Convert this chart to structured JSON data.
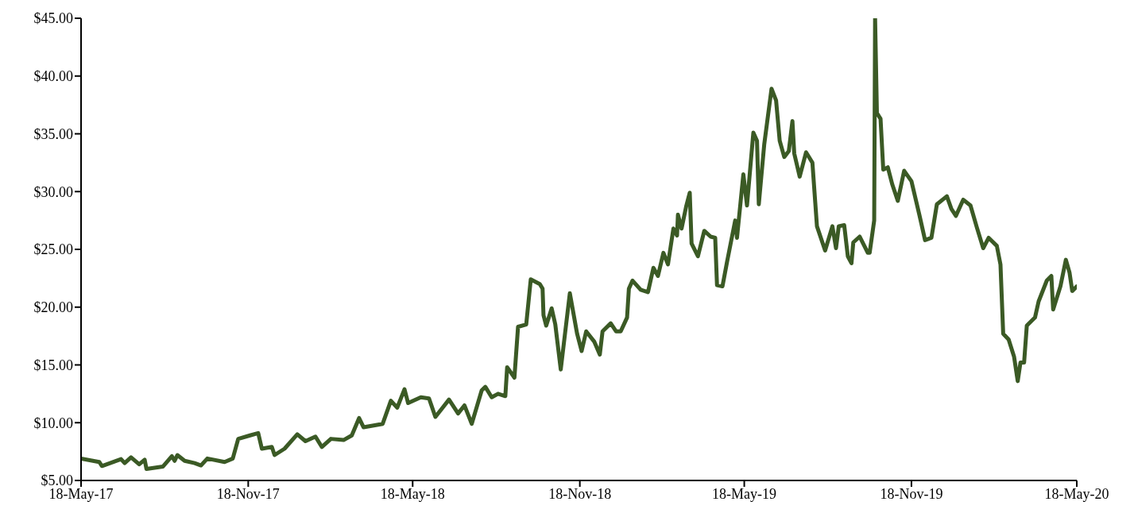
{
  "chart_data": {
    "type": "line",
    "x": [
      "2017-05-18",
      "2017-06-07",
      "2017-06-10",
      "2017-07-01",
      "2017-07-05",
      "2017-07-12",
      "2017-07-21",
      "2017-07-27",
      "2017-07-29",
      "2017-08-16",
      "2017-08-26",
      "2017-08-29",
      "2017-09-01",
      "2017-09-09",
      "2017-09-20",
      "2017-09-27",
      "2017-10-04",
      "2017-10-23",
      "2017-11-01",
      "2017-11-07",
      "2017-11-20",
      "2017-11-29",
      "2017-12-03",
      "2017-12-14",
      "2017-12-17",
      "2017-12-28",
      "2018-01-11",
      "2018-01-20",
      "2018-01-31",
      "2018-02-07",
      "2018-02-17",
      "2018-03-03",
      "2018-03-12",
      "2018-03-20",
      "2018-03-25",
      "2018-04-15",
      "2018-04-24",
      "2018-05-01",
      "2018-05-09",
      "2018-05-13",
      "2018-05-27",
      "2018-06-05",
      "2018-06-12",
      "2018-06-27",
      "2018-07-07",
      "2018-07-14",
      "2018-07-22",
      "2018-08-02",
      "2018-08-06",
      "2018-08-13",
      "2018-08-20",
      "2018-08-28",
      "2018-08-30",
      "2018-09-07",
      "2018-09-11",
      "2018-09-20",
      "2018-09-25",
      "2018-10-05",
      "2018-10-08",
      "2018-10-09",
      "2018-10-12",
      "2018-10-18",
      "2018-10-22",
      "2018-10-28",
      "2018-11-07",
      "2018-11-15",
      "2018-11-20",
      "2018-11-25",
      "2018-12-04",
      "2018-12-10",
      "2018-12-13",
      "2018-12-22",
      "2018-12-28",
      "2019-01-02",
      "2019-01-09",
      "2019-01-11",
      "2019-01-15",
      "2019-01-24",
      "2019-02-01",
      "2019-02-07",
      "2019-02-12",
      "2019-02-18",
      "2019-02-23",
      "2019-03-01",
      "2019-03-05",
      "2019-03-06",
      "2019-03-10",
      "2019-03-15",
      "2019-03-19",
      "2019-03-21",
      "2019-03-28",
      "2019-04-04",
      "2019-04-11",
      "2019-04-16",
      "2019-04-18",
      "2019-04-24",
      "2019-04-29",
      "2019-05-08",
      "2019-05-10",
      "2019-05-17",
      "2019-05-21",
      "2019-05-28",
      "2019-06-01",
      "2019-06-03",
      "2019-06-09",
      "2019-06-17",
      "2019-06-22",
      "2019-06-26",
      "2019-07-01",
      "2019-07-06",
      "2019-07-10",
      "2019-07-12",
      "2019-07-18",
      "2019-07-25",
      "2019-08-01",
      "2019-08-06",
      "2019-08-15",
      "2019-08-23",
      "2019-08-27",
      "2019-08-30",
      "2019-09-05",
      "2019-09-09",
      "2019-09-13",
      "2019-09-15",
      "2019-09-22",
      "2019-10-01",
      "2019-10-03",
      "2019-10-08",
      "2019-10-09",
      "2019-10-11",
      "2019-10-15",
      "2019-10-18",
      "2019-10-23",
      "2019-10-28",
      "2019-11-03",
      "2019-11-10",
      "2019-11-18",
      "2019-11-27",
      "2019-12-03",
      "2019-12-10",
      "2019-12-16",
      "2019-12-27",
      "2020-01-01",
      "2020-01-06",
      "2020-01-14",
      "2020-01-22",
      "2020-01-29",
      "2020-02-05",
      "2020-02-11",
      "2020-02-20",
      "2020-02-24",
      "2020-02-27",
      "2020-03-04",
      "2020-03-10",
      "2020-03-14",
      "2020-03-17",
      "2020-03-21",
      "2020-03-24",
      "2020-04-02",
      "2020-04-06",
      "2020-04-15",
      "2020-04-20",
      "2020-04-22",
      "2020-04-30",
      "2020-05-06",
      "2020-05-10",
      "2020-05-13",
      "2020-05-18"
    ],
    "series": [
      {
        "color": "#3b5a25",
        "values": [
          6.9,
          6.6,
          6.25,
          6.85,
          6.5,
          7.0,
          6.4,
          6.8,
          6.0,
          6.2,
          7.1,
          6.7,
          7.2,
          6.7,
          6.5,
          6.3,
          6.9,
          6.6,
          6.9,
          8.6,
          8.9,
          9.1,
          7.75,
          7.9,
          7.2,
          7.75,
          9.0,
          8.4,
          8.8,
          7.9,
          8.6,
          8.5,
          8.9,
          10.4,
          9.6,
          9.9,
          11.9,
          11.3,
          12.9,
          11.7,
          12.2,
          12.1,
          10.5,
          12.0,
          10.8,
          11.5,
          9.9,
          12.8,
          13.1,
          12.2,
          12.5,
          12.3,
          14.8,
          13.9,
          18.3,
          18.5,
          22.4,
          22.0,
          21.6,
          19.3,
          18.4,
          19.9,
          18.5,
          14.6,
          21.2,
          17.7,
          16.2,
          17.9,
          17.0,
          15.9,
          17.9,
          18.6,
          17.9,
          17.9,
          19.1,
          21.6,
          22.3,
          21.5,
          21.3,
          23.4,
          22.7,
          24.7,
          23.7,
          26.8,
          26.2,
          28.0,
          26.8,
          28.7,
          29.9,
          25.5,
          24.4,
          26.6,
          26.1,
          26.0,
          21.9,
          21.8,
          23.9,
          27.5,
          26.0,
          31.5,
          28.8,
          35.1,
          34.4,
          28.9,
          34.1,
          38.9,
          37.9,
          34.4,
          33.0,
          33.5,
          36.1,
          33.3,
          31.3,
          33.4,
          32.5,
          27.0,
          24.9,
          27.0,
          25.1,
          27.0,
          27.1,
          24.4,
          23.8,
          25.6,
          26.1,
          24.7,
          24.7,
          27.5,
          45.0,
          36.8,
          36.3,
          31.9,
          32.1,
          30.6,
          29.2,
          31.8,
          30.9,
          27.9,
          25.8,
          26.0,
          28.9,
          29.6,
          28.5,
          27.9,
          29.3,
          28.8,
          26.9,
          25.1,
          26.0,
          25.3,
          23.7,
          17.7,
          17.2,
          15.7,
          13.6,
          15.2,
          15.2,
          18.4,
          19.1,
          20.5,
          22.3,
          22.7,
          19.8,
          21.8,
          24.1,
          23.0,
          21.4,
          21.8
        ]
      }
    ],
    "xlim": [
      "2017-05-18",
      "2020-05-18"
    ],
    "xticks": [
      {
        "value": "2017-05-18",
        "label": "18-May-17"
      },
      {
        "value": "2017-11-18",
        "label": "18-Nov-17"
      },
      {
        "value": "2018-05-18",
        "label": "18-May-18"
      },
      {
        "value": "2018-11-18",
        "label": "18-Nov-18"
      },
      {
        "value": "2019-05-18",
        "label": "18-May-19"
      },
      {
        "value": "2019-11-18",
        "label": "18-Nov-19"
      },
      {
        "value": "2020-05-18",
        "label": "18-May-20"
      }
    ],
    "ylim": [
      5,
      45
    ],
    "yticks": [
      {
        "value": 5,
        "label": "$5.00"
      },
      {
        "value": 10,
        "label": "$10.00"
      },
      {
        "value": 15,
        "label": "$15.00"
      },
      {
        "value": 20,
        "label": "$20.00"
      },
      {
        "value": 25,
        "label": "$25.00"
      },
      {
        "value": 30,
        "label": "$30.00"
      },
      {
        "value": 35,
        "label": "$35.00"
      },
      {
        "value": 40,
        "label": "$40.00"
      },
      {
        "value": 45,
        "label": "$45.00"
      }
    ],
    "grid": false,
    "legend": false,
    "marker": "none",
    "line_style": "solid"
  }
}
